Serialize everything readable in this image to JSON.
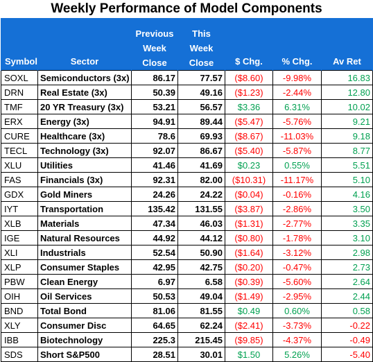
{
  "title": "Weekly Performance of Model Components",
  "headers": {
    "symbol": "Symbol",
    "sector": "Sector",
    "prev": [
      "Previous",
      "Week",
      "Close"
    ],
    "this": [
      "This",
      "Week",
      "Close"
    ],
    "chg": "$ Chg.",
    "pct": "% Chg.",
    "ret": "Av Ret"
  },
  "colors": {
    "header_bg": "#1570d6",
    "negative": "#ff0000",
    "positive": "#00a050"
  },
  "rows": [
    {
      "symbol": "SOXL",
      "sector": "Semiconductors (3x)",
      "prev": "86.17",
      "this": "77.57",
      "chg": "($8.60)",
      "pct": "-9.98%",
      "ret": "16.83"
    },
    {
      "symbol": "DRN",
      "sector": "Real Estate (3x)",
      "prev": "50.39",
      "this": "49.16",
      "chg": "($1.23)",
      "pct": "-2.44%",
      "ret": "12.80"
    },
    {
      "symbol": "TMF",
      "sector": "20 YR Treasury (3x)",
      "prev": "53.21",
      "this": "56.57",
      "chg": "$3.36",
      "pct": "6.31%",
      "ret": "10.02"
    },
    {
      "symbol": "ERX",
      "sector": "Energy (3x)",
      "prev": "94.91",
      "this": "89.44",
      "chg": "($5.47)",
      "pct": "-5.76%",
      "ret": "9.21"
    },
    {
      "symbol": "CURE",
      "sector": "Healthcare (3x)",
      "prev": "78.6",
      "this": "69.93",
      "chg": "($8.67)",
      "pct": "-11.03%",
      "ret": "9.18"
    },
    {
      "symbol": "TECL",
      "sector": "Technology (3x)",
      "prev": "92.07",
      "this": "86.67",
      "chg": "($5.40)",
      "pct": "-5.87%",
      "ret": "8.77"
    },
    {
      "symbol": "XLU",
      "sector": "Utilities",
      "prev": "41.46",
      "this": "41.69",
      "chg": "$0.23",
      "pct": "0.55%",
      "ret": "5.51"
    },
    {
      "symbol": "FAS",
      "sector": "Financials (3x)",
      "prev": "92.31",
      "this": "82.00",
      "chg": "($10.31)",
      "pct": "-11.17%",
      "ret": "5.10"
    },
    {
      "symbol": "GDX",
      "sector": "Gold Miners",
      "prev": "24.26",
      "this": "24.22",
      "chg": "($0.04)",
      "pct": "-0.16%",
      "ret": "4.16"
    },
    {
      "symbol": "IYT",
      "sector": "Transportation",
      "prev": "135.42",
      "this": "131.55",
      "chg": "($3.87)",
      "pct": "-2.86%",
      "ret": "3.50"
    },
    {
      "symbol": "XLB",
      "sector": "Materials",
      "prev": "47.34",
      "this": "46.03",
      "chg": "($1.31)",
      "pct": "-2.77%",
      "ret": "3.35"
    },
    {
      "symbol": "IGE",
      "sector": "Natural Resources",
      "prev": "44.92",
      "this": "44.12",
      "chg": "($0.80)",
      "pct": "-1.78%",
      "ret": "3.10"
    },
    {
      "symbol": "XLI",
      "sector": "Industrials",
      "prev": "52.54",
      "this": "50.90",
      "chg": "($1.64)",
      "pct": "-3.12%",
      "ret": "2.98"
    },
    {
      "symbol": "XLP",
      "sector": "Consumer Staples",
      "prev": "42.95",
      "this": "42.75",
      "chg": "($0.20)",
      "pct": "-0.47%",
      "ret": "2.73"
    },
    {
      "symbol": "PBW",
      "sector": "Clean Energy",
      "prev": "6.97",
      "this": "6.58",
      "chg": "($0.39)",
      "pct": "-5.60%",
      "ret": "2.64"
    },
    {
      "symbol": "OIH",
      "sector": "Oil Services",
      "prev": "50.53",
      "this": "49.04",
      "chg": "($1.49)",
      "pct": "-2.95%",
      "ret": "2.44"
    },
    {
      "symbol": "BND",
      "sector": "Total Bond",
      "prev": "81.06",
      "this": "81.55",
      "chg": "$0.49",
      "pct": "0.60%",
      "ret": "0.58"
    },
    {
      "symbol": "XLY",
      "sector": "Consumer Disc",
      "prev": "64.65",
      "this": "62.24",
      "chg": "($2.41)",
      "pct": "-3.73%",
      "ret": "-0.22"
    },
    {
      "symbol": "IBB",
      "sector": "Biotechnology",
      "prev": "225.3",
      "this": "215.45",
      "chg": "($9.85)",
      "pct": "-4.37%",
      "ret": "-0.49"
    },
    {
      "symbol": "SDS",
      "sector": "Short S&P500",
      "prev": "28.51",
      "this": "30.01",
      "chg": "$1.50",
      "pct": "5.26%",
      "ret": "-5.40"
    }
  ]
}
